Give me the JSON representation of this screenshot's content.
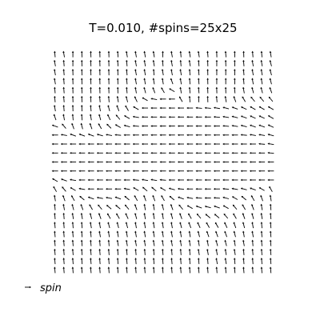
{
  "chart_data": {
    "type": "quiver",
    "title": "T=0.010, #spins=25x25",
    "xlabel": "",
    "ylabel": "",
    "grid": false,
    "axes_visible": false,
    "legend": {
      "label": "spin",
      "placement": "bottom-left"
    },
    "nx": 25,
    "ny": 25,
    "xlim": [
      -0.5,
      24.5
    ],
    "ylim": [
      -0.5,
      24.5
    ],
    "angles_deg": [
      [
        95,
        100,
        90,
        92,
        92,
        92,
        92,
        95,
        100,
        100,
        100,
        100,
        90,
        100,
        95,
        100,
        100,
        95,
        92,
        95,
        92,
        92,
        95,
        95,
        100
      ],
      [
        100,
        95,
        90,
        92,
        92,
        92,
        92,
        95,
        95,
        100,
        100,
        100,
        95,
        100,
        95,
        100,
        95,
        92,
        90,
        92,
        92,
        95,
        100,
        100,
        105
      ],
      [
        100,
        95,
        92,
        92,
        92,
        92,
        92,
        92,
        95,
        100,
        100,
        95,
        100,
        100,
        100,
        95,
        95,
        92,
        90,
        90,
        92,
        95,
        100,
        100,
        105
      ],
      [
        100,
        95,
        92,
        92,
        92,
        92,
        92,
        92,
        95,
        100,
        100,
        100,
        100,
        110,
        100,
        95,
        95,
        92,
        90,
        90,
        92,
        95,
        100,
        100,
        105
      ],
      [
        95,
        95,
        92,
        92,
        92,
        92,
        92,
        92,
        95,
        100,
        105,
        110,
        120,
        150,
        100,
        95,
        95,
        92,
        92,
        92,
        95,
        100,
        105,
        105,
        110
      ],
      [
        95,
        95,
        92,
        92,
        92,
        95,
        95,
        100,
        105,
        115,
        150,
        170,
        180,
        180,
        120,
        95,
        92,
        92,
        95,
        100,
        110,
        120,
        130,
        130,
        130
      ],
      [
        100,
        95,
        92,
        92,
        95,
        100,
        105,
        110,
        120,
        150,
        180,
        180,
        180,
        180,
        180,
        180,
        175,
        175,
        170,
        165,
        160,
        155,
        150,
        150,
        150
      ],
      [
        110,
        100,
        95,
        95,
        100,
        105,
        115,
        130,
        150,
        170,
        180,
        180,
        180,
        180,
        180,
        180,
        180,
        180,
        175,
        170,
        165,
        160,
        155,
        155,
        150
      ],
      [
        160,
        130,
        110,
        105,
        110,
        120,
        135,
        150,
        165,
        175,
        180,
        180,
        180,
        180,
        180,
        180,
        180,
        180,
        180,
        175,
        170,
        165,
        160,
        160,
        155
      ],
      [
        180,
        170,
        160,
        160,
        160,
        165,
        170,
        175,
        180,
        180,
        180,
        180,
        180,
        180,
        180,
        180,
        180,
        180,
        180,
        180,
        180,
        175,
        170,
        170,
        165
      ],
      [
        180,
        180,
        180,
        180,
        180,
        180,
        180,
        180,
        180,
        180,
        180,
        180,
        180,
        180,
        180,
        180,
        180,
        180,
        180,
        180,
        180,
        180,
        180,
        175,
        170
      ],
      [
        180,
        180,
        180,
        180,
        180,
        180,
        180,
        180,
        180,
        180,
        180,
        180,
        180,
        180,
        180,
        180,
        180,
        180,
        180,
        180,
        180,
        180,
        180,
        180,
        175
      ],
      [
        180,
        180,
        180,
        180,
        180,
        180,
        180,
        180,
        180,
        180,
        180,
        180,
        180,
        180,
        180,
        180,
        180,
        180,
        180,
        180,
        180,
        180,
        180,
        180,
        180
      ],
      [
        180,
        180,
        180,
        180,
        180,
        180,
        180,
        180,
        180,
        180,
        180,
        180,
        180,
        180,
        180,
        180,
        180,
        180,
        180,
        180,
        180,
        180,
        180,
        180,
        180
      ],
      [
        150,
        160,
        170,
        180,
        180,
        180,
        180,
        180,
        180,
        175,
        170,
        170,
        175,
        180,
        180,
        180,
        180,
        180,
        180,
        180,
        180,
        180,
        180,
        180,
        180
      ],
      [
        120,
        130,
        150,
        170,
        180,
        180,
        180,
        180,
        170,
        150,
        140,
        140,
        150,
        165,
        175,
        180,
        180,
        180,
        180,
        175,
        170,
        165,
        160,
        150,
        120
      ],
      [
        100,
        110,
        120,
        140,
        160,
        170,
        170,
        160,
        140,
        120,
        110,
        110,
        120,
        140,
        160,
        170,
        175,
        180,
        175,
        165,
        150,
        140,
        120,
        110,
        100
      ],
      [
        95,
        100,
        105,
        110,
        120,
        130,
        140,
        140,
        130,
        110,
        100,
        100,
        105,
        110,
        130,
        150,
        160,
        165,
        160,
        150,
        130,
        120,
        110,
        100,
        95
      ],
      [
        95,
        95,
        100,
        100,
        105,
        110,
        120,
        120,
        115,
        105,
        100,
        100,
        100,
        105,
        110,
        120,
        130,
        140,
        140,
        130,
        120,
        110,
        105,
        100,
        95
      ],
      [
        95,
        95,
        95,
        95,
        100,
        100,
        105,
        105,
        105,
        100,
        100,
        100,
        100,
        100,
        105,
        110,
        115,
        120,
        120,
        115,
        110,
        105,
        100,
        95,
        95
      ],
      [
        95,
        95,
        95,
        95,
        95,
        100,
        100,
        100,
        100,
        100,
        100,
        100,
        100,
        100,
        100,
        100,
        105,
        110,
        110,
        110,
        105,
        100,
        100,
        95,
        95
      ],
      [
        95,
        95,
        95,
        95,
        95,
        95,
        95,
        100,
        100,
        100,
        100,
        100,
        100,
        100,
        100,
        100,
        100,
        100,
        105,
        105,
        100,
        100,
        95,
        95,
        95
      ],
      [
        95,
        95,
        95,
        95,
        95,
        95,
        95,
        95,
        95,
        95,
        95,
        95,
        95,
        95,
        95,
        95,
        100,
        100,
        100,
        100,
        100,
        95,
        95,
        95,
        95
      ],
      [
        95,
        95,
        95,
        95,
        95,
        95,
        95,
        95,
        95,
        95,
        95,
        95,
        95,
        95,
        95,
        95,
        95,
        95,
        100,
        100,
        95,
        95,
        95,
        95,
        95
      ],
      [
        95,
        95,
        95,
        95,
        95,
        95,
        95,
        95,
        95,
        95,
        95,
        95,
        95,
        95,
        95,
        95,
        95,
        95,
        95,
        95,
        95,
        95,
        95,
        95,
        95
      ]
    ]
  }
}
